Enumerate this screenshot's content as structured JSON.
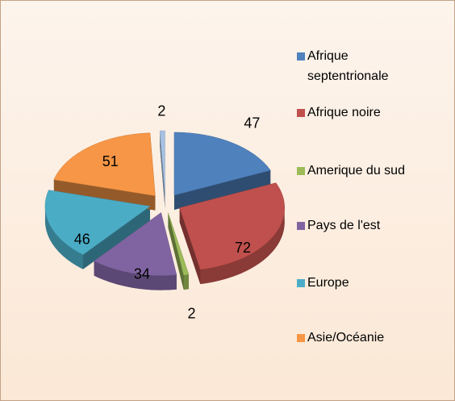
{
  "chart_data": {
    "type": "pie3d",
    "categories": [
      "Afrique septentrionale",
      "Afrique noire",
      "Amerique du sud",
      "Pays de l'est",
      "Europe",
      "Asie/Océanie",
      null
    ],
    "values": [
      47,
      72,
      2,
      34,
      46,
      51,
      2
    ],
    "colors": [
      "#4f81bd",
      "#c0504d",
      "#9bbb59",
      "#8064a2",
      "#4bacc6",
      "#f79646",
      "#a7c1e2"
    ]
  }
}
